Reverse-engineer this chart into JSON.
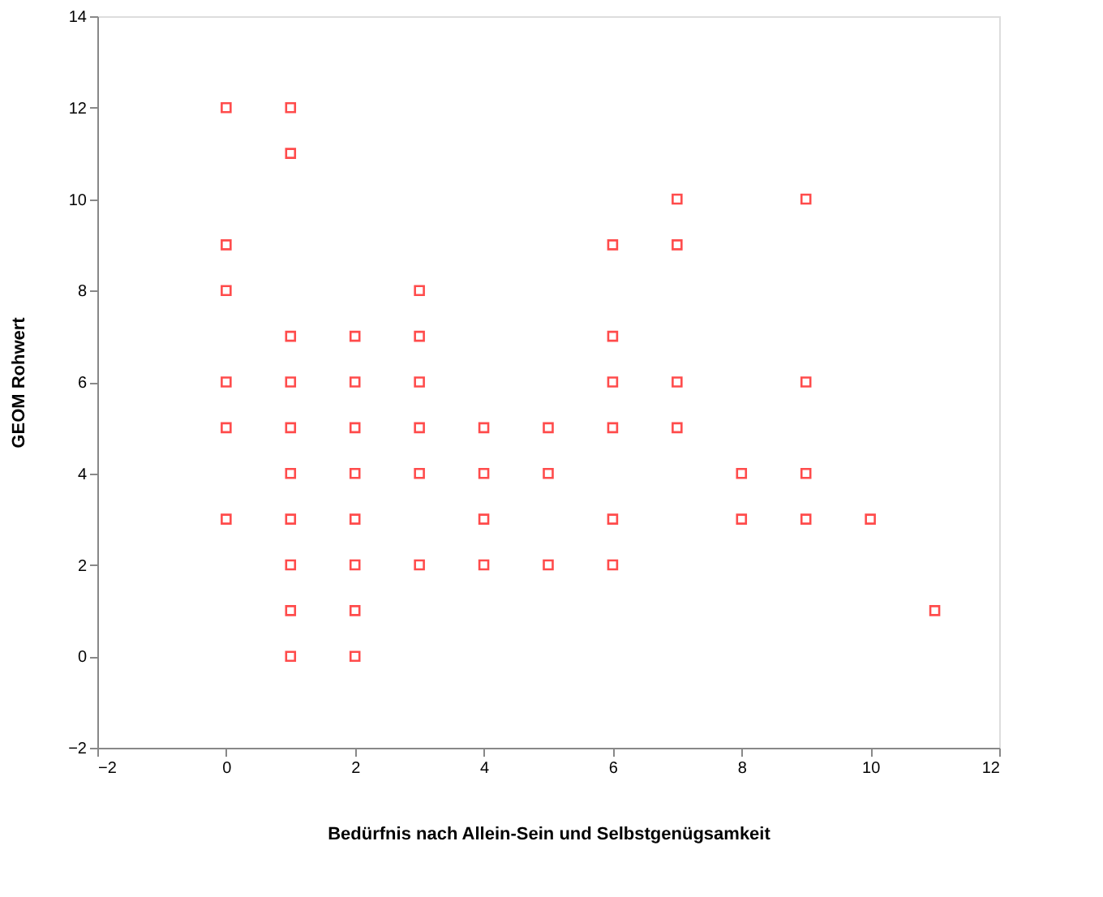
{
  "chart_data": {
    "type": "scatter",
    "xlabel": "Bedürfnis nach Allein-Sein und Selbstgenügsamkeit",
    "ylabel": "GEOM Rohwert",
    "x": [
      0,
      0,
      0,
      0,
      0,
      0,
      1,
      1,
      1,
      1,
      1,
      1,
      1,
      1,
      1,
      1,
      2,
      2,
      2,
      2,
      2,
      2,
      2,
      2,
      3,
      3,
      3,
      3,
      3,
      3,
      4,
      4,
      4,
      4,
      5,
      5,
      5,
      6,
      6,
      6,
      6,
      6,
      6,
      7,
      7,
      7,
      7,
      8,
      8,
      9,
      9,
      9,
      9,
      10,
      11
    ],
    "series": [
      {
        "color": "#ff0000",
        "values": [
          12,
          9,
          8,
          6,
          5,
          3,
          12,
          11,
          7,
          6,
          5,
          4,
          3,
          2,
          1,
          0,
          7,
          6,
          5,
          4,
          3,
          2,
          1,
          0,
          8,
          7,
          6,
          5,
          4,
          2,
          5,
          4,
          3,
          2,
          5,
          4,
          2,
          9,
          7,
          6,
          5,
          3,
          2,
          10,
          9,
          6,
          5,
          4,
          3,
          10,
          6,
          4,
          3,
          3,
          1
        ]
      }
    ],
    "xlim": [
      -2,
      12
    ],
    "xticks": [
      -2,
      0,
      2,
      4,
      6,
      8,
      10,
      12
    ],
    "ylim": [
      -2,
      14
    ],
    "yticks": [
      -2,
      0,
      2,
      4,
      6,
      8,
      10,
      12,
      14
    ],
    "marker": "square",
    "grid": false,
    "legend": false
  }
}
